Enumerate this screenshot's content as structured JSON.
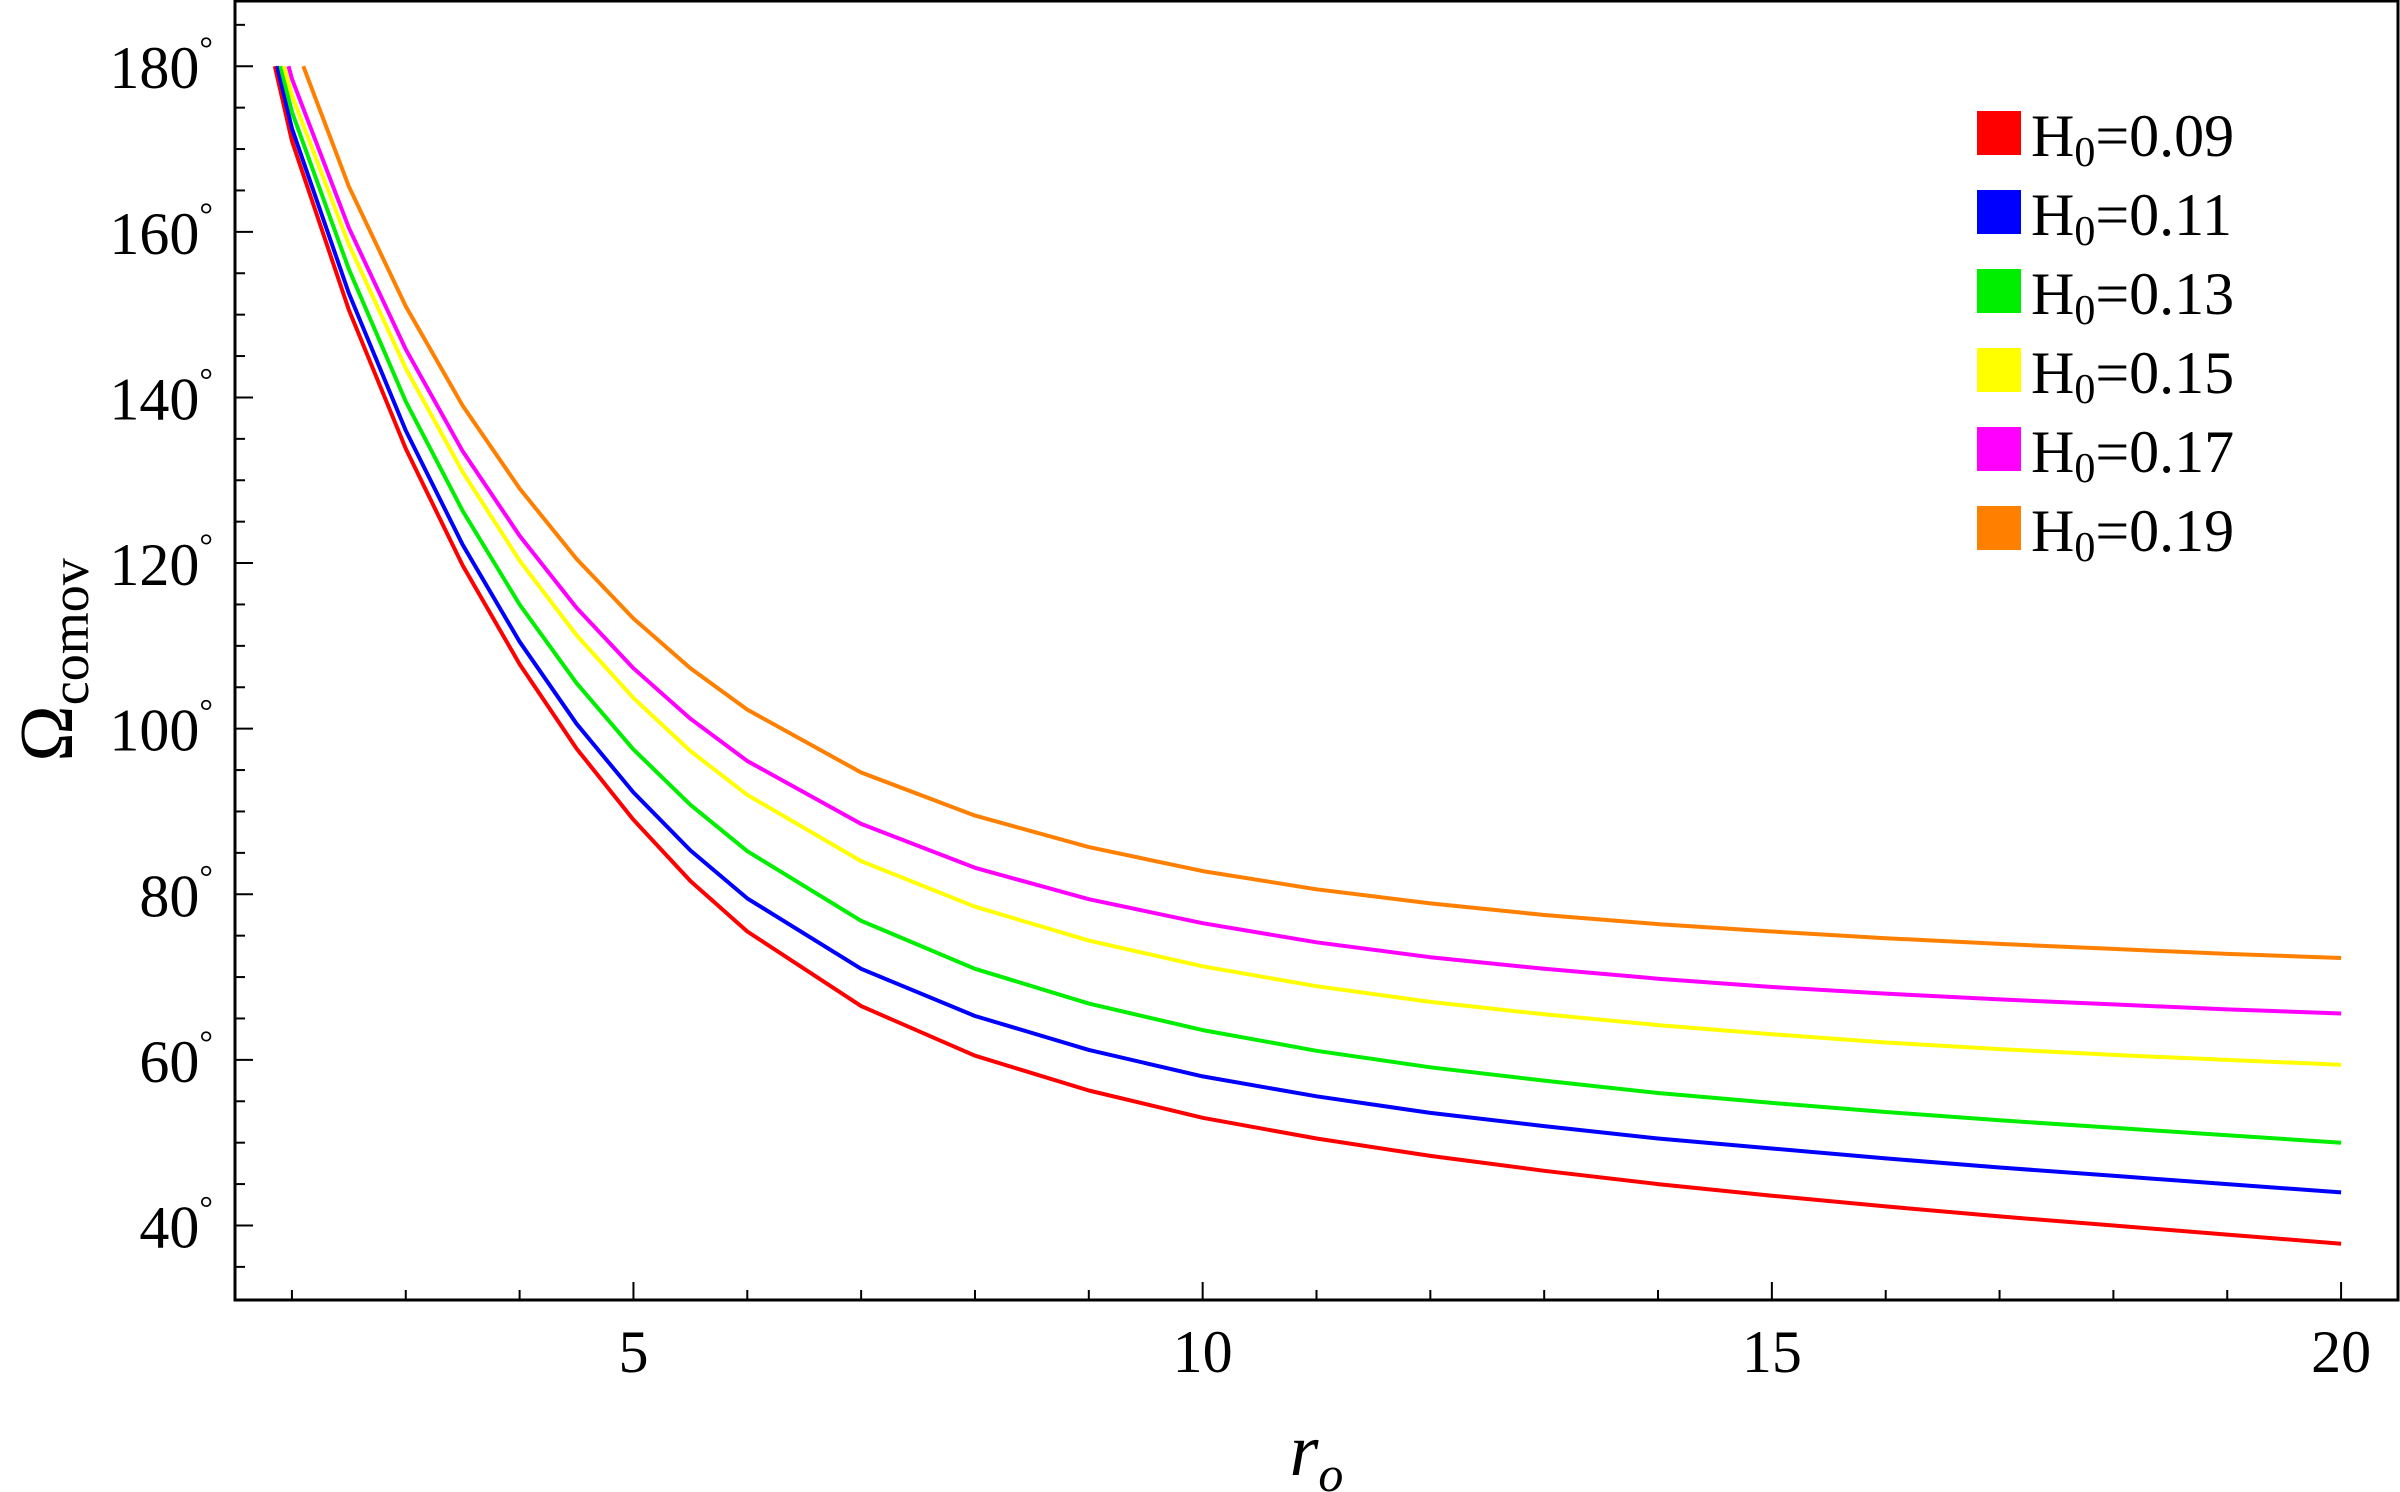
{
  "chart_data": {
    "type": "line",
    "xlabel": "r",
    "xlabel_sub": "o",
    "ylabel": "Ω",
    "ylabel_sub": "comov",
    "xlim": [
      1.5,
      20.5
    ],
    "ylim": [
      31.0,
      188.0
    ],
    "x_ticks": [
      5,
      10,
      15,
      20
    ],
    "y_ticks": [
      40,
      60,
      80,
      100,
      120,
      140,
      160,
      180
    ],
    "y_tick_suffix": "°",
    "x_minor_step": 1,
    "y_minor_step": 5,
    "grid": false,
    "legend_position": "top-right",
    "series": [
      {
        "name": "H0=0.09",
        "legend_main": "H",
        "legend_sub": "0",
        "legend_value": "=0.09",
        "color": "#ff0000",
        "points": [
          [
            1.85,
            180
          ],
          [
            2.0,
            171
          ],
          [
            2.5,
            150.6
          ],
          [
            3.0,
            133.8
          ],
          [
            3.5,
            119.7
          ],
          [
            4.0,
            107.8
          ],
          [
            4.5,
            97.6
          ],
          [
            5.0,
            89
          ],
          [
            5.5,
            81.6
          ],
          [
            6.0,
            75.5
          ],
          [
            7.0,
            66.5
          ],
          [
            8.0,
            60.5
          ],
          [
            9.0,
            56.3
          ],
          [
            10.0,
            53
          ],
          [
            11.0,
            50.5
          ],
          [
            12.0,
            48.4
          ],
          [
            13.0,
            46.6
          ],
          [
            14.0,
            45
          ],
          [
            15.0,
            43.6
          ],
          [
            16.0,
            42.3
          ],
          [
            17.0,
            41.1
          ],
          [
            18.0,
            40
          ],
          [
            19.0,
            38.9
          ],
          [
            20.0,
            37.8
          ]
        ]
      },
      {
        "name": "H0=0.11",
        "legend_main": "H",
        "legend_sub": "0",
        "legend_value": "=0.11",
        "color": "#0000ff",
        "points": [
          [
            1.87,
            180
          ],
          [
            2.0,
            172.5
          ],
          [
            2.5,
            152.6
          ],
          [
            3.0,
            136
          ],
          [
            3.5,
            122.2
          ],
          [
            4.0,
            110.5
          ],
          [
            4.5,
            100.6
          ],
          [
            5.0,
            92.3
          ],
          [
            5.5,
            85.3
          ],
          [
            6.0,
            79.5
          ],
          [
            7.0,
            71
          ],
          [
            8.0,
            65.3
          ],
          [
            9.0,
            61.2
          ],
          [
            10.0,
            58
          ],
          [
            11.0,
            55.6
          ],
          [
            12.0,
            53.6
          ],
          [
            13.0,
            52
          ],
          [
            14.0,
            50.5
          ],
          [
            15.0,
            49.3
          ],
          [
            16.0,
            48.1
          ],
          [
            17.0,
            47
          ],
          [
            18.0,
            46
          ],
          [
            19.0,
            45
          ],
          [
            20.0,
            44
          ]
        ]
      },
      {
        "name": "H0=0.13",
        "legend_main": "H",
        "legend_sub": "0",
        "legend_value": "=0.13",
        "color": "#00ee00",
        "points": [
          [
            1.9,
            180
          ],
          [
            2.0,
            174.5
          ],
          [
            2.5,
            155.5
          ],
          [
            3.0,
            139.5
          ],
          [
            3.5,
            126.3
          ],
          [
            4.0,
            115
          ],
          [
            4.5,
            105.5
          ],
          [
            5.0,
            97.5
          ],
          [
            5.5,
            90.8
          ],
          [
            6.0,
            85.2
          ],
          [
            7.0,
            76.8
          ],
          [
            8.0,
            71
          ],
          [
            9.0,
            66.8
          ],
          [
            10.0,
            63.6
          ],
          [
            11.0,
            61.1
          ],
          [
            12.0,
            59.1
          ],
          [
            13.0,
            57.5
          ],
          [
            14.0,
            56
          ],
          [
            15.0,
            54.8
          ],
          [
            16.0,
            53.7
          ],
          [
            17.0,
            52.7
          ],
          [
            18.0,
            51.8
          ],
          [
            19.0,
            50.9
          ],
          [
            20.0,
            50
          ]
        ]
      },
      {
        "name": "H0=0.15",
        "legend_main": "H",
        "legend_sub": "0",
        "legend_value": "=0.15",
        "color": "#ffff00",
        "points": [
          [
            1.93,
            180
          ],
          [
            2.0,
            176.5
          ],
          [
            2.5,
            158.5
          ],
          [
            3.0,
            143.5
          ],
          [
            3.5,
            131
          ],
          [
            4.0,
            120.3
          ],
          [
            4.5,
            111.3
          ],
          [
            5.0,
            103.7
          ],
          [
            5.5,
            97.3
          ],
          [
            6.0,
            92
          ],
          [
            7.0,
            84
          ],
          [
            8.0,
            78.5
          ],
          [
            9.0,
            74.4
          ],
          [
            10.0,
            71.3
          ],
          [
            11.0,
            68.9
          ],
          [
            12.0,
            67
          ],
          [
            13.0,
            65.5
          ],
          [
            14.0,
            64.2
          ],
          [
            15.0,
            63.1
          ],
          [
            16.0,
            62.1
          ],
          [
            17.0,
            61.3
          ],
          [
            18.0,
            60.6
          ],
          [
            19.0,
            60
          ],
          [
            20.0,
            59.4
          ]
        ]
      },
      {
        "name": "H0=0.17",
        "legend_main": "H",
        "legend_sub": "0",
        "legend_value": "=0.17",
        "color": "#ff00ff",
        "points": [
          [
            1.97,
            180
          ],
          [
            2.0,
            178.5
          ],
          [
            2.5,
            160.5
          ],
          [
            3.0,
            145.8
          ],
          [
            3.5,
            133.5
          ],
          [
            4.0,
            123.3
          ],
          [
            4.5,
            114.6
          ],
          [
            5.0,
            107.3
          ],
          [
            5.5,
            101.2
          ],
          [
            6.0,
            96.1
          ],
          [
            7.0,
            88.5
          ],
          [
            8.0,
            83.2
          ],
          [
            9.0,
            79.4
          ],
          [
            10.0,
            76.5
          ],
          [
            11.0,
            74.2
          ],
          [
            12.0,
            72.4
          ],
          [
            13.0,
            71
          ],
          [
            14.0,
            69.8
          ],
          [
            15.0,
            68.8
          ],
          [
            16.0,
            68
          ],
          [
            17.0,
            67.3
          ],
          [
            18.0,
            66.7
          ],
          [
            19.0,
            66.1
          ],
          [
            20.0,
            65.6
          ]
        ]
      },
      {
        "name": "H0=0.19",
        "legend_main": "H",
        "legend_sub": "0",
        "legend_value": "=0.19",
        "color": "#ff8000",
        "points": [
          [
            2.1,
            180
          ],
          [
            2.5,
            165.5
          ],
          [
            3.0,
            151
          ],
          [
            3.5,
            139
          ],
          [
            4.0,
            129
          ],
          [
            4.5,
            120.5
          ],
          [
            5.0,
            113.3
          ],
          [
            5.5,
            107.3
          ],
          [
            6.0,
            102.3
          ],
          [
            7.0,
            94.7
          ],
          [
            8.0,
            89.5
          ],
          [
            9.0,
            85.7
          ],
          [
            10.0,
            82.8
          ],
          [
            11.0,
            80.6
          ],
          [
            12.0,
            78.9
          ],
          [
            13.0,
            77.5
          ],
          [
            14.0,
            76.4
          ],
          [
            15.0,
            75.5
          ],
          [
            16.0,
            74.7
          ],
          [
            17.0,
            74
          ],
          [
            18.0,
            73.4
          ],
          [
            19.0,
            72.8
          ],
          [
            20.0,
            72.3
          ]
        ]
      }
    ]
  }
}
